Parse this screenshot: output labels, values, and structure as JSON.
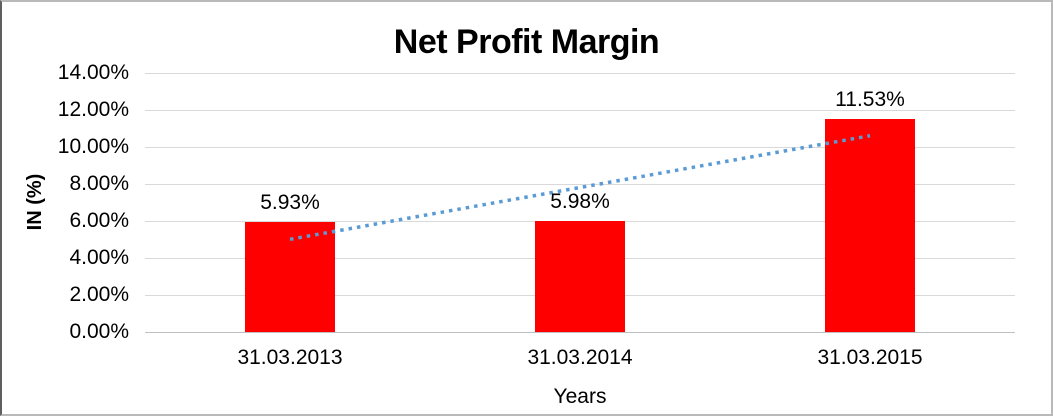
{
  "chart_data": {
    "type": "bar",
    "title": "Net Profit Margin",
    "xlabel": "Years",
    "ylabel": "IN (%)",
    "categories": [
      "31.03.2013",
      "31.03.2014",
      "31.03.2015"
    ],
    "values": [
      5.93,
      5.98,
      11.53
    ],
    "data_labels": [
      "5.93%",
      "5.98%",
      "11.53%"
    ],
    "ylim": [
      0,
      14
    ],
    "ytick_step": 2,
    "ytick_labels": [
      "0.00%",
      "2.00%",
      "4.00%",
      "6.00%",
      "8.00%",
      "10.00%",
      "12.00%",
      "14.00%"
    ],
    "grid": "horizontal",
    "legend": "none",
    "bar_color": "#ff0000",
    "gridline_color": "#d9d9d9",
    "axis_line_color": "#bfbfbf",
    "text_color": "#000000",
    "trendline": {
      "type": "linear",
      "style": "dotted",
      "color": "#5b9bd5",
      "y_start_pct": 5.01,
      "y_end_pct": 10.61
    }
  }
}
